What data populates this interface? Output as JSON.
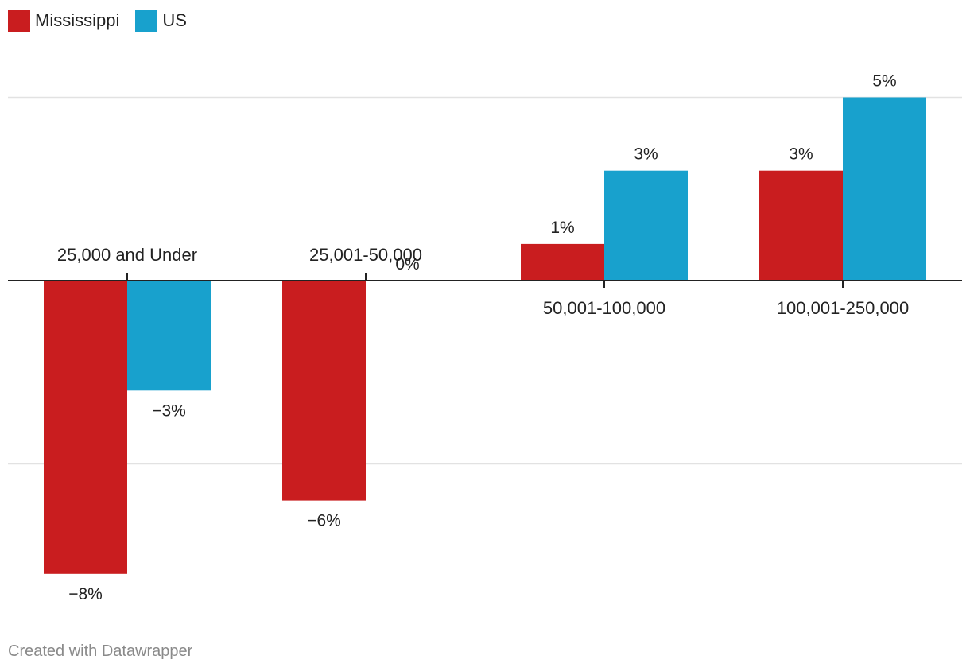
{
  "chart_data": {
    "type": "bar",
    "categories": [
      "25,000 and Under",
      "25,001-50,000",
      "50,001-100,000",
      "100,001-250,000"
    ],
    "series": [
      {
        "name": "Mississippi",
        "color": "#c91d1f",
        "values": [
          -8,
          -6,
          1,
          3
        ],
        "labels": [
          "−8%",
          "−6%",
          "1%",
          "3%"
        ]
      },
      {
        "name": "US",
        "color": "#18a1cd",
        "values": [
          -3,
          0,
          3,
          5
        ],
        "labels": [
          "−3%",
          "0%",
          "3%",
          "5%"
        ]
      }
    ],
    "ylim": [
      -8,
      5
    ],
    "gridlines": [
      5,
      -5
    ],
    "legend_position": "top-left",
    "grid": true
  },
  "footer": {
    "credit": "Created with Datawrapper"
  }
}
